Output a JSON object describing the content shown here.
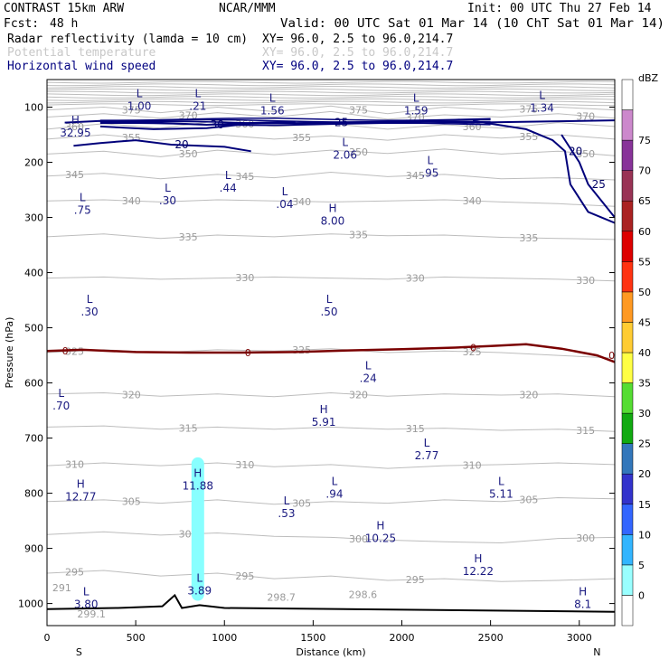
{
  "header": {
    "title_left": "CONTRAST 15km ARW",
    "title_center": "NCAR/MMM",
    "init": "Init: 00 UTC Thu 27 Feb 14",
    "fcst_label": "Fcst:",
    "fcst_value": "48 h",
    "valid": "Valid: 00 UTC Sat 01 Mar 14 (10 ChT Sat 01 Mar 14)"
  },
  "fields": [
    {
      "name": "Radar reflectivity (lamda = 10 cm)",
      "xy": "XY=  96.0,  2.5 to  96.0,214.7",
      "color": "#000000"
    },
    {
      "name": "Potential temperature",
      "xy": "XY=  96.0,  2.5 to  96.0,214.7",
      "color": "#c8c8c8"
    },
    {
      "name": "Horizontal wind speed",
      "xy": "XY=  96.0,  2.5 to  96.0,214.7",
      "color": "#000080"
    }
  ],
  "colorbar": {
    "unit": "dBZ",
    "levels": [
      "0",
      "5",
      "10",
      "15",
      "20",
      "25",
      "30",
      "35",
      "40",
      "45",
      "50",
      "55",
      "60",
      "65",
      "70",
      "75"
    ],
    "colors": [
      "#ffffff",
      "#99ffff",
      "#33b5ff",
      "#3366ff",
      "#3333cc",
      "#3377bb",
      "#11aa11",
      "#55dd33",
      "#ffff44",
      "#ffcc33",
      "#ff9922",
      "#ff3311",
      "#dd0000",
      "#aa2222",
      "#993355",
      "#883399",
      "#cc88cc",
      "#ffffff"
    ]
  },
  "chart_data": {
    "type": "cross-section",
    "xlabel": "Distance (km)",
    "ylabel": "Pressure (hPa)",
    "xlim": [
      0,
      3200
    ],
    "ylim": [
      1040,
      50
    ],
    "x_ticks": [
      "0",
      "500",
      "1000",
      "1500",
      "2000",
      "2500",
      "3000"
    ],
    "y_ticks": [
      "100",
      "200",
      "300",
      "400",
      "500",
      "600",
      "700",
      "800",
      "900",
      "1000"
    ],
    "x_end_left": "S",
    "x_end_right": "N",
    "theta_isentropes": [
      {
        "label": "375",
        "p": [
          105,
          100,
          110,
          100,
          108,
          98,
          112,
          100,
          106,
          100,
          105
        ]
      },
      {
        "label": "370",
        "p": [
          118,
          112,
          120,
          110,
          118,
          108,
          122,
          114,
          118,
          112,
          120
        ]
      },
      {
        "label": "360",
        "p": [
          140,
          130,
          138,
          125,
          135,
          130,
          140,
          132,
          138,
          128,
          135
        ]
      },
      {
        "label": "355",
        "p": [
          158,
          150,
          160,
          150,
          158,
          152,
          160,
          150,
          156,
          150,
          158
        ]
      },
      {
        "label": "350",
        "p": [
          185,
          180,
          190,
          178,
          186,
          178,
          184,
          176,
          185,
          180,
          188
        ]
      },
      {
        "label": "345",
        "p": [
          225,
          220,
          230,
          222,
          228,
          218,
          226,
          222,
          230,
          228,
          232
        ]
      },
      {
        "label": "340",
        "p": [
          270,
          268,
          272,
          268,
          270,
          272,
          270,
          268,
          272,
          275,
          280
        ]
      },
      {
        "label": "335",
        "p": [
          335,
          330,
          338,
          332,
          335,
          330,
          333,
          332,
          336,
          338,
          340
        ]
      },
      {
        "label": "330",
        "p": [
          410,
          408,
          412,
          410,
          408,
          410,
          412,
          408,
          410,
          412,
          415
        ]
      },
      {
        "label": "325",
        "p": [
          545,
          540,
          545,
          540,
          542,
          538,
          545,
          542,
          545,
          550,
          555
        ]
      },
      {
        "label": "320",
        "p": [
          620,
          618,
          624,
          620,
          625,
          618,
          624,
          620,
          622,
          620,
          625
        ]
      },
      {
        "label": "315",
        "p": [
          680,
          678,
          684,
          680,
          684,
          680,
          684,
          682,
          686,
          684,
          688
        ]
      },
      {
        "label": "310",
        "p": [
          750,
          745,
          750,
          745,
          752,
          748,
          755,
          750,
          748,
          745,
          748
        ]
      },
      {
        "label": "305",
        "p": [
          815,
          812,
          818,
          812,
          820,
          815,
          818,
          812,
          815,
          808,
          810
        ]
      },
      {
        "label": "300",
        "p": [
          875,
          870,
          876,
          872,
          878,
          880,
          885,
          888,
          890,
          882,
          880
        ]
      },
      {
        "label": "295",
        "p": [
          945,
          940,
          950,
          945,
          955,
          950,
          958,
          955,
          960,
          958,
          955
        ]
      }
    ],
    "surface_temps": [
      "291",
      "299.1",
      "298.7",
      "298.6"
    ],
    "theta_x": [
      0,
      320,
      640,
      960,
      1280,
      1600,
      1920,
      2240,
      2560,
      2880,
      3200
    ],
    "wind_contours": [
      {
        "label": "30",
        "points": [
          [
            100,
            128
          ],
          [
            300,
            125
          ],
          [
            600,
            128
          ],
          [
            900,
            132
          ],
          [
            1200,
            128
          ],
          [
            1400,
            127
          ]
        ]
      },
      {
        "label": "25",
        "points": [
          [
            300,
            135
          ],
          [
            600,
            140
          ],
          [
            900,
            138
          ],
          [
            1150,
            130
          ],
          [
            1600,
            128
          ],
          [
            2000,
            126
          ],
          [
            2400,
            128
          ],
          [
            2800,
            126
          ],
          [
            3200,
            124
          ]
        ]
      },
      {
        "label": "20",
        "points": [
          [
            150,
            170
          ],
          [
            300,
            165
          ],
          [
            500,
            160
          ],
          [
            700,
            168
          ],
          [
            1000,
            172
          ],
          [
            1150,
            180
          ]
        ]
      },
      {
        "label": "20",
        "points": [
          [
            2400,
            125
          ],
          [
            2700,
            140
          ],
          [
            2850,
            160
          ],
          [
            2920,
            180
          ],
          [
            2950,
            240
          ],
          [
            3050,
            290
          ],
          [
            3200,
            310
          ]
        ]
      },
      {
        "label": "25",
        "points": [
          [
            2900,
            150
          ],
          [
            3000,
            200
          ],
          [
            3050,
            240
          ],
          [
            3150,
            280
          ],
          [
            3200,
            300
          ]
        ]
      }
    ],
    "wind_speed_extrema": [
      {
        "type": "L",
        "value": "1.00",
        "x": 520,
        "p": 92
      },
      {
        "type": "L",
        "value": ".21",
        "x": 850,
        "p": 92
      },
      {
        "type": "L",
        "value": "1.56",
        "x": 1270,
        "p": 100
      },
      {
        "type": "L",
        "value": "1.59",
        "x": 2080,
        "p": 100
      },
      {
        "type": "L",
        "value": "1.34",
        "x": 2790,
        "p": 95
      },
      {
        "type": "H",
        "value": "32.95",
        "x": 160,
        "p": 140
      },
      {
        "type": "L",
        "value": "2.06",
        "x": 1680,
        "p": 180
      },
      {
        "type": "L",
        "value": ".95",
        "x": 2160,
        "p": 213
      },
      {
        "type": "L",
        "value": ".30",
        "x": 680,
        "p": 263
      },
      {
        "type": "L",
        "value": ".44",
        "x": 1020,
        "p": 240
      },
      {
        "type": "L",
        "value": ".04",
        "x": 1340,
        "p": 270
      },
      {
        "type": "L",
        "value": ".75",
        "x": 200,
        "p": 280
      },
      {
        "type": "H",
        "value": "8.00",
        "x": 1610,
        "p": 300
      },
      {
        "type": "L",
        "value": ".30",
        "x": 240,
        "p": 465
      },
      {
        "type": "L",
        "value": ".50",
        "x": 1590,
        "p": 465
      },
      {
        "type": "L",
        "value": ".24",
        "x": 1810,
        "p": 585
      },
      {
        "type": "L",
        "value": ".70",
        "x": 80,
        "p": 635
      },
      {
        "type": "H",
        "value": "5.91",
        "x": 1560,
        "p": 665
      },
      {
        "type": "L",
        "value": "2.77",
        "x": 2140,
        "p": 725
      },
      {
        "type": "H",
        "value": "11.88",
        "x": 850,
        "p": 780
      },
      {
        "type": "H",
        "value": "12.77",
        "x": 190,
        "p": 800
      },
      {
        "type": "L",
        "value": ".94",
        "x": 1620,
        "p": 795
      },
      {
        "type": "L",
        "value": "5.11",
        "x": 2560,
        "p": 795
      },
      {
        "type": "L",
        "value": ".53",
        "x": 1350,
        "p": 830
      },
      {
        "type": "H",
        "value": "10.25",
        "x": 1880,
        "p": 875
      },
      {
        "type": "H",
        "value": "12.22",
        "x": 2430,
        "p": 935
      },
      {
        "type": "L",
        "value": "3.89",
        "x": 860,
        "p": 970
      },
      {
        "type": "L",
        "value": "3.80",
        "x": 220,
        "p": 995
      },
      {
        "type": "H",
        "value": "8.1",
        "x": 3020,
        "p": 995
      }
    ],
    "freezing_line": {
      "label": "0",
      "x": [
        0,
        200,
        500,
        800,
        1100,
        1400,
        1700,
        2000,
        2300,
        2500,
        2700,
        2900,
        3100,
        3200
      ],
      "p": [
        542,
        540,
        544,
        545,
        545,
        544,
        541,
        539,
        536,
        533,
        530,
        538,
        550,
        562
      ]
    },
    "reflectivity_column": {
      "x": 850,
      "p_top": 735,
      "p_bottom": 995,
      "dbz": "5-10"
    },
    "terrain": {
      "x": [
        0,
        400,
        650,
        720,
        760,
        800,
        860,
        1000,
        3200
      ],
      "p": [
        1010,
        1008,
        1005,
        985,
        1008,
        1006,
        1003,
        1008,
        1015
      ]
    }
  }
}
